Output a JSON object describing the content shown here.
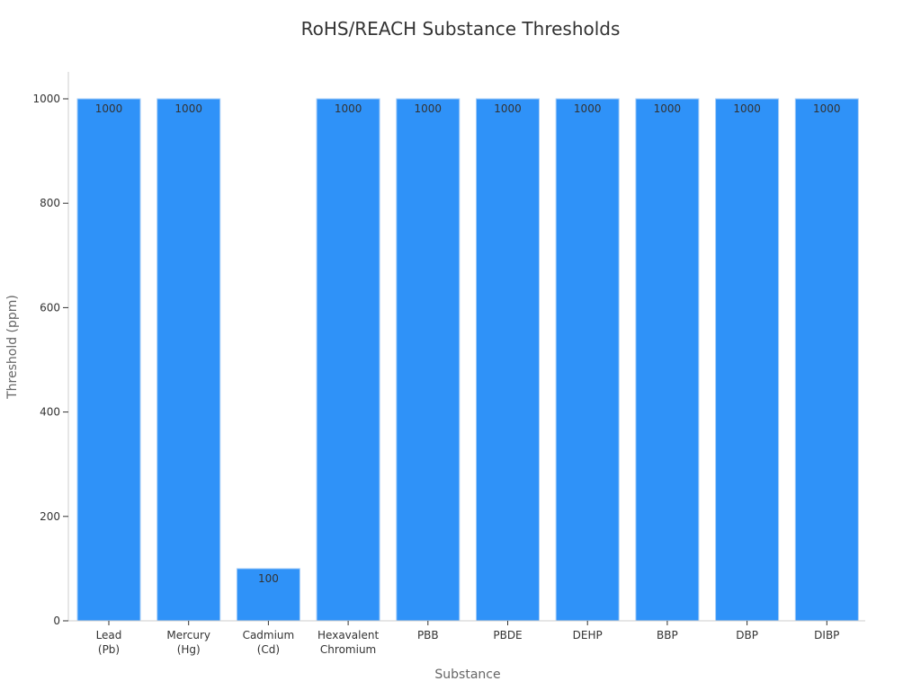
{
  "chart_data": {
    "type": "bar",
    "title": "RoHS/REACH Substance Thresholds",
    "xlabel": "Substance",
    "ylabel": "Threshold (ppm)",
    "categories": [
      "Lead\n(Pb)",
      "Mercury\n(Hg)",
      "Cadmium\n(Cd)",
      "Hexavalent\nChromium",
      "PBB",
      "PBDE",
      "DEHP",
      "BBP",
      "DBP",
      "DIBP"
    ],
    "values": [
      1000,
      1000,
      100,
      1000,
      1000,
      1000,
      1000,
      1000,
      1000,
      1000
    ],
    "data_labels": [
      "1000",
      "1000",
      "100",
      "1000",
      "1000",
      "1000",
      "1000",
      "1000",
      "1000",
      "1000"
    ],
    "ylim": [
      0,
      1000
    ],
    "yticks": [
      0,
      200,
      400,
      600,
      800,
      1000
    ],
    "grid": false,
    "legend": "none",
    "bar_color": "#2f92f8",
    "bar_edge_color": "#a6cdf7"
  }
}
